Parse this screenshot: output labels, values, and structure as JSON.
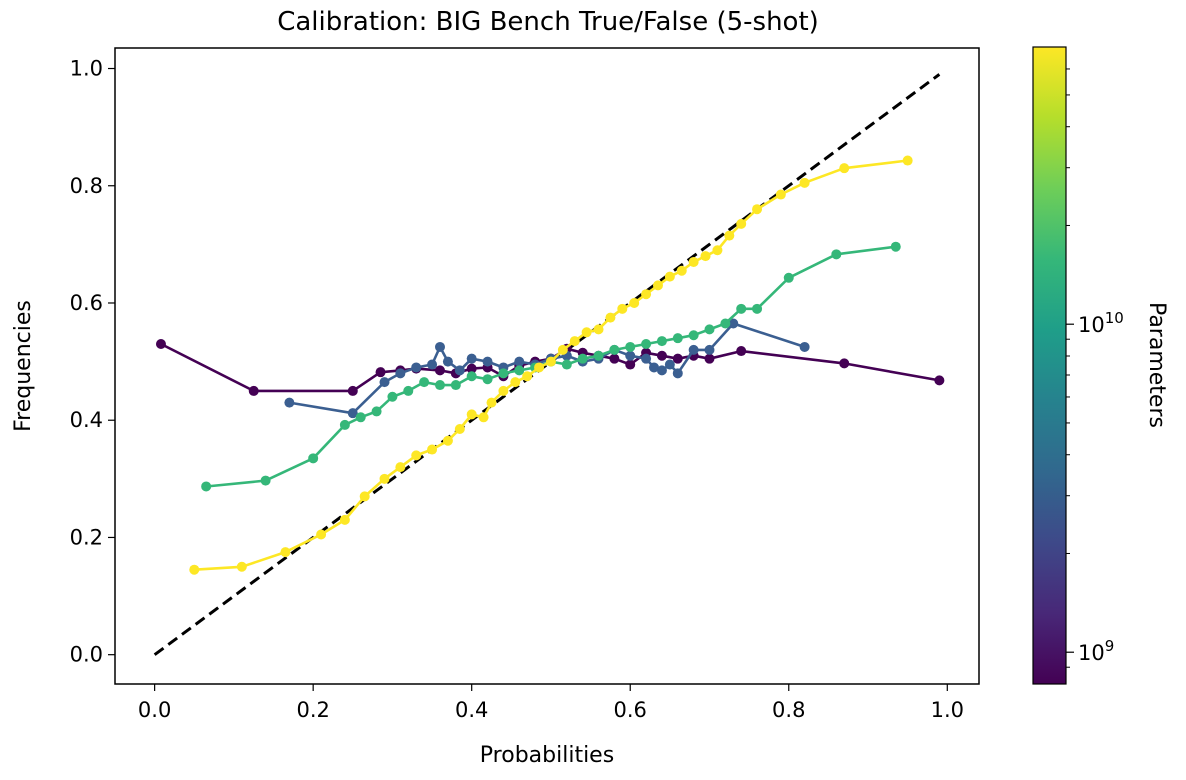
{
  "chart_data": {
    "type": "line",
    "title": "Calibration: BIG Bench True/False (5-shot)",
    "xlabel": "Probabilities",
    "ylabel": "Frequencies",
    "xlim": [
      -0.05,
      1.04
    ],
    "ylim": [
      -0.05,
      1.035
    ],
    "xticks": [
      "0.0",
      "0.2",
      "0.4",
      "0.6",
      "0.8",
      "1.0"
    ],
    "yticks": [
      "0.0",
      "0.2",
      "0.4",
      "0.6",
      "0.8",
      "1.0"
    ],
    "grid": false,
    "reference_line": {
      "style": "dashed",
      "color": "#000000",
      "x": [
        0,
        0.99
      ],
      "y": [
        0,
        0.99
      ]
    },
    "colorbar": {
      "label": "Parameters",
      "scale": "log",
      "tick_labels": [
        {
          "base": "10",
          "exp": "9",
          "value": 1000000000
        },
        {
          "base": "10",
          "exp": "10",
          "value": 10000000000
        }
      ],
      "colormap": [
        "#440154",
        "#482878",
        "#3e4989",
        "#31688e",
        "#26828e",
        "#1f9e89",
        "#35b779",
        "#6ece58",
        "#b5de2b",
        "#fde725"
      ]
    },
    "series": [
      {
        "color": "#440154",
        "x": [
          0.008,
          0.125,
          0.25,
          0.285,
          0.31,
          0.33,
          0.36,
          0.38,
          0.4,
          0.42,
          0.44,
          0.46,
          0.48,
          0.5,
          0.52,
          0.54,
          0.56,
          0.58,
          0.6,
          0.62,
          0.64,
          0.66,
          0.68,
          0.7,
          0.74,
          0.87,
          0.99
        ],
        "y": [
          0.53,
          0.45,
          0.45,
          0.482,
          0.485,
          0.488,
          0.485,
          0.48,
          0.488,
          0.49,
          0.475,
          0.493,
          0.5,
          0.505,
          0.522,
          0.515,
          0.51,
          0.505,
          0.495,
          0.515,
          0.51,
          0.505,
          0.51,
          0.505,
          0.518,
          0.497,
          0.468
        ]
      },
      {
        "color": "#3b5f91",
        "x": [
          0.17,
          0.25,
          0.29,
          0.31,
          0.33,
          0.35,
          0.36,
          0.37,
          0.385,
          0.4,
          0.42,
          0.44,
          0.46,
          0.48,
          0.5,
          0.52,
          0.54,
          0.56,
          0.58,
          0.6,
          0.62,
          0.63,
          0.64,
          0.65,
          0.66,
          0.68,
          0.7,
          0.73,
          0.82
        ],
        "y": [
          0.43,
          0.412,
          0.465,
          0.48,
          0.49,
          0.495,
          0.525,
          0.5,
          0.485,
          0.505,
          0.5,
          0.49,
          0.5,
          0.495,
          0.505,
          0.51,
          0.5,
          0.505,
          0.52,
          0.51,
          0.505,
          0.49,
          0.485,
          0.495,
          0.48,
          0.52,
          0.52,
          0.565,
          0.525
        ]
      },
      {
        "color": "#35b779",
        "x": [
          0.065,
          0.14,
          0.2,
          0.24,
          0.26,
          0.28,
          0.3,
          0.32,
          0.34,
          0.36,
          0.38,
          0.4,
          0.42,
          0.44,
          0.46,
          0.48,
          0.5,
          0.52,
          0.54,
          0.56,
          0.58,
          0.6,
          0.62,
          0.64,
          0.66,
          0.68,
          0.7,
          0.72,
          0.74,
          0.76,
          0.8,
          0.86,
          0.935
        ],
        "y": [
          0.287,
          0.297,
          0.335,
          0.392,
          0.405,
          0.415,
          0.44,
          0.45,
          0.465,
          0.46,
          0.46,
          0.475,
          0.47,
          0.48,
          0.485,
          0.49,
          0.5,
          0.495,
          0.505,
          0.51,
          0.52,
          0.525,
          0.53,
          0.535,
          0.54,
          0.545,
          0.555,
          0.565,
          0.59,
          0.59,
          0.643,
          0.683,
          0.696
        ]
      },
      {
        "color": "#fde725",
        "x": [
          0.05,
          0.11,
          0.165,
          0.21,
          0.24,
          0.265,
          0.29,
          0.31,
          0.33,
          0.35,
          0.37,
          0.385,
          0.4,
          0.415,
          0.425,
          0.44,
          0.455,
          0.47,
          0.485,
          0.5,
          0.515,
          0.53,
          0.545,
          0.56,
          0.575,
          0.59,
          0.605,
          0.62,
          0.635,
          0.65,
          0.665,
          0.68,
          0.695,
          0.71,
          0.725,
          0.74,
          0.76,
          0.79,
          0.82,
          0.87,
          0.95
        ],
        "y": [
          0.145,
          0.15,
          0.175,
          0.205,
          0.23,
          0.27,
          0.3,
          0.32,
          0.34,
          0.35,
          0.365,
          0.385,
          0.41,
          0.405,
          0.43,
          0.45,
          0.465,
          0.475,
          0.49,
          0.5,
          0.52,
          0.535,
          0.55,
          0.555,
          0.575,
          0.59,
          0.6,
          0.615,
          0.63,
          0.645,
          0.655,
          0.67,
          0.68,
          0.69,
          0.715,
          0.735,
          0.76,
          0.785,
          0.805,
          0.83,
          0.843
        ]
      }
    ]
  }
}
